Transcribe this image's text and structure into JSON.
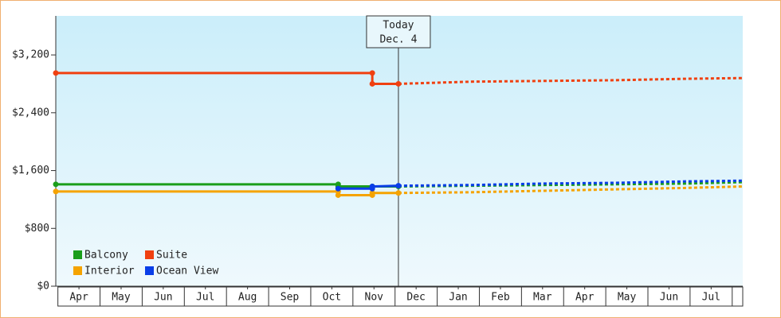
{
  "chart_data": {
    "type": "line",
    "ylim": [
      0,
      3740
    ],
    "yticks": [
      {
        "value": 0,
        "label": "$0"
      },
      {
        "value": 800,
        "label": "$800"
      },
      {
        "value": 1600,
        "label": "$1,600"
      },
      {
        "value": 2400,
        "label": "$2,400"
      },
      {
        "value": 3200,
        "label": "$3,200"
      }
    ],
    "xlim": [
      -0.05,
      16.25
    ],
    "xticks": [
      {
        "value": 0.5,
        "label": "Apr"
      },
      {
        "value": 1.5,
        "label": "May"
      },
      {
        "value": 2.5,
        "label": "Jun"
      },
      {
        "value": 3.5,
        "label": "Jul"
      },
      {
        "value": 4.5,
        "label": "Aug"
      },
      {
        "value": 5.5,
        "label": "Sep"
      },
      {
        "value": 6.5,
        "label": "Oct"
      },
      {
        "value": 7.5,
        "label": "Nov"
      },
      {
        "value": 8.5,
        "label": "Dec"
      },
      {
        "value": 9.5,
        "label": "Jan"
      },
      {
        "value": 10.5,
        "label": "Feb"
      },
      {
        "value": 11.5,
        "label": "Mar"
      },
      {
        "value": 12.5,
        "label": "Apr"
      },
      {
        "value": 13.5,
        "label": "May"
      },
      {
        "value": 14.5,
        "label": "Jun"
      },
      {
        "value": 15.5,
        "label": "Jul"
      }
    ],
    "today": {
      "x": 8.08,
      "label": [
        "Today",
        "Dec. 4"
      ]
    },
    "legend": "lower left",
    "series": [
      {
        "name": "Balcony",
        "color": "#1a9e1a",
        "x": [
          -0.05,
          6.65,
          6.65,
          7.46,
          8.08
        ],
        "values": [
          1410,
          1410,
          1380,
          1380,
          1380
        ],
        "forecast": {
          "x": [
            8.08,
            9.8,
            11.5,
            13.2,
            14.9,
            16.25
          ],
          "values": [
            1380,
            1390,
            1400,
            1410,
            1420,
            1440
          ]
        }
      },
      {
        "name": "Suite",
        "color": "#f04010",
        "x": [
          -0.05,
          7.46,
          7.46,
          8.08
        ],
        "values": [
          2950,
          2950,
          2800,
          2800
        ],
        "forecast": {
          "x": [
            8.08,
            9.8,
            11.5,
            13.2,
            14.9,
            16.25
          ],
          "values": [
            2800,
            2830,
            2840,
            2850,
            2870,
            2880
          ]
        }
      },
      {
        "name": "Interior",
        "color": "#f5a300",
        "x": [
          -0.05,
          6.65,
          6.65,
          7.46,
          7.46,
          8.08
        ],
        "values": [
          1310,
          1310,
          1260,
          1260,
          1290,
          1290
        ],
        "forecast": {
          "x": [
            8.08,
            9.8,
            11.5,
            13.2,
            14.9,
            16.25
          ],
          "values": [
            1290,
            1300,
            1320,
            1340,
            1360,
            1380
          ]
        }
      },
      {
        "name": "Ocean View",
        "color": "#0a3ee8",
        "x": [
          6.65,
          7.46,
          7.46,
          8.08
        ],
        "values": [
          1350,
          1350,
          1380,
          1390
        ],
        "forecast": {
          "x": [
            8.08,
            9.8,
            11.5,
            13.2,
            14.9,
            16.25
          ],
          "values": [
            1390,
            1400,
            1420,
            1430,
            1450,
            1460
          ]
        }
      }
    ]
  }
}
